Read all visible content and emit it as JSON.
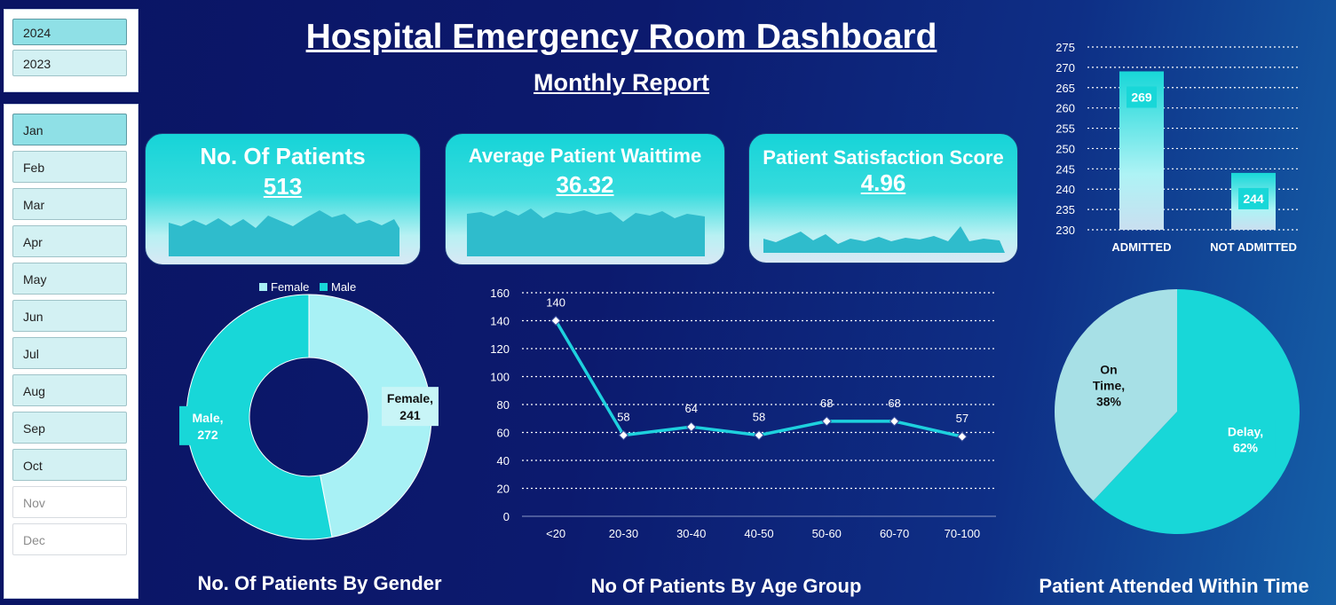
{
  "header": {
    "title": "Hospital Emergency Room Dashboard",
    "subtitle": "Monthly Report"
  },
  "year_slicer": [
    {
      "label": "2024",
      "state": "selected"
    },
    {
      "label": "2023",
      "state": "available"
    }
  ],
  "month_slicer": [
    {
      "label": "Jan",
      "state": "selected"
    },
    {
      "label": "Feb",
      "state": "available"
    },
    {
      "label": "Mar",
      "state": "available"
    },
    {
      "label": "Apr",
      "state": "available"
    },
    {
      "label": "May",
      "state": "available"
    },
    {
      "label": "Jun",
      "state": "available"
    },
    {
      "label": "Jul",
      "state": "available"
    },
    {
      "label": "Aug",
      "state": "available"
    },
    {
      "label": "Sep",
      "state": "available"
    },
    {
      "label": "Oct",
      "state": "available"
    },
    {
      "label": "Nov",
      "state": "no-data"
    },
    {
      "label": "Dec",
      "state": "no-data"
    }
  ],
  "kpis": {
    "patients": {
      "label": "No. Of Patients",
      "value": "513"
    },
    "wait": {
      "label": "Average Patient Waittime",
      "value": "36.32"
    },
    "satisfaction": {
      "label": "Patient Satisfaction Score",
      "value": "4.96"
    }
  },
  "captions": {
    "gender": "No. Of Patients By Gender",
    "age": "No Of Patients By Age Group",
    "attended": "Patient Attended Within Time"
  },
  "colors": {
    "female": "#a8f1f5",
    "male": "#18d7d8",
    "line": "#1ed1de",
    "on_time": "#a7e0e6",
    "delay": "#18d7d8"
  },
  "chart_data": [
    {
      "type": "bar",
      "categories": [
        "ADMITTED",
        "NOT ADMITTED"
      ],
      "values": [
        269,
        244
      ],
      "ylim": [
        230,
        275
      ],
      "yticks": [
        230,
        235,
        240,
        245,
        250,
        255,
        260,
        265,
        270,
        275
      ],
      "grid": true
    },
    {
      "type": "pie",
      "variant": "donut",
      "legend": [
        "Female",
        "Male"
      ],
      "legend_position": "top",
      "slices": [
        {
          "label": "Female",
          "value": 241
        },
        {
          "label": "Male",
          "value": 272
        }
      ]
    },
    {
      "type": "line",
      "categories": [
        "<20",
        "20-30",
        "30-40",
        "40-50",
        "50-60",
        "60-70",
        "70-100"
      ],
      "values": [
        140,
        58,
        64,
        58,
        68,
        68,
        57
      ],
      "ylim": [
        0,
        160
      ],
      "yticks": [
        0,
        20,
        40,
        60,
        80,
        100,
        120,
        140,
        160
      ],
      "grid": true
    },
    {
      "type": "pie",
      "slices": [
        {
          "label": "On Time",
          "value": 38,
          "text": "38%"
        },
        {
          "label": "Delay",
          "value": 62,
          "text": "62%"
        }
      ]
    }
  ]
}
